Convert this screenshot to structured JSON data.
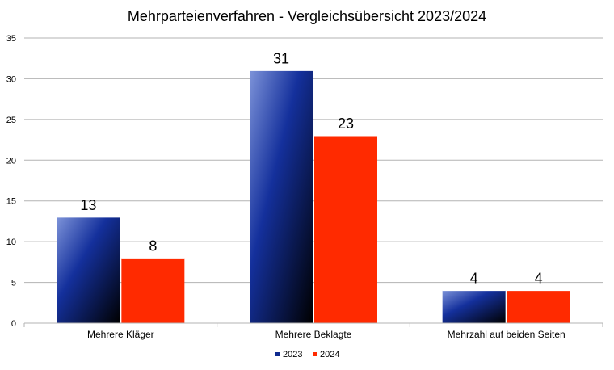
{
  "chart_data": {
    "type": "bar",
    "title": "Mehrparteienverfahren - Vergleichsübersicht 2023/2024",
    "xlabel": "",
    "ylabel": "",
    "categories": [
      "Mehrere Kläger",
      "Mehrere Beklagte",
      "Mehrzahl auf beiden Seiten"
    ],
    "series": [
      {
        "name": "2023",
        "values": [
          13,
          31,
          4
        ],
        "color": "#0f2a8f"
      },
      {
        "name": "2024",
        "values": [
          8,
          23,
          4
        ],
        "color": "#ff2a00"
      }
    ],
    "ylim": [
      0,
      35
    ],
    "yticks": [
      0,
      5,
      10,
      15,
      20,
      25,
      30,
      35
    ],
    "grid": true,
    "legend": "bottom",
    "data_labels": true
  }
}
